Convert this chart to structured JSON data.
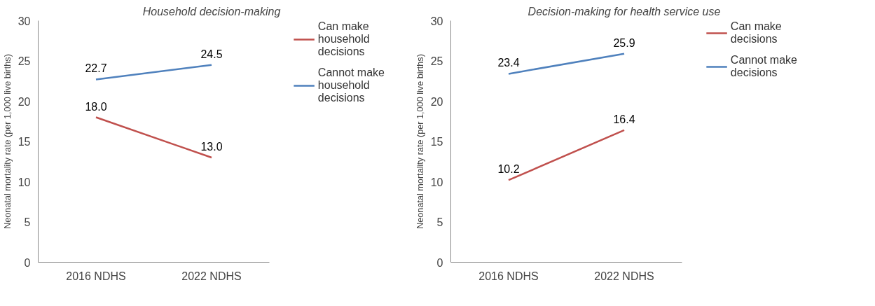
{
  "chart_data": [
    {
      "type": "line",
      "title": "Household decision-making",
      "ylabel": "Neonatal mortality rate (per 1,000 live births)",
      "categories": [
        "2016 NDHS",
        "2022 NDHS"
      ],
      "series": [
        {
          "name": "Can make household decisions",
          "color": "#c0504d",
          "values": [
            18.0,
            13.0
          ],
          "value_labels": [
            "18.0",
            "13.0"
          ]
        },
        {
          "name": "Cannot make household decisions",
          "color": "#4f81bd",
          "values": [
            22.7,
            24.5
          ],
          "value_labels": [
            "22.7",
            "24.5"
          ]
        }
      ],
      "ylim": [
        0,
        30
      ],
      "yticks": [
        0,
        5,
        10,
        15,
        20,
        25,
        30
      ],
      "grid": false,
      "legend": "right",
      "marker": "none"
    },
    {
      "type": "line",
      "title": "Decision-making for health service use",
      "ylabel": "Neonatal mortality rate (per 1,000 live births)",
      "categories": [
        "2016 NDHS",
        "2022 NDHS"
      ],
      "series": [
        {
          "name": "Can make decisions",
          "color": "#c0504d",
          "values": [
            10.2,
            16.4
          ],
          "value_labels": [
            "10.2",
            "16.4"
          ]
        },
        {
          "name": "Cannot make decisions",
          "color": "#4f81bd",
          "values": [
            23.4,
            25.9
          ],
          "value_labels": [
            "23.4",
            "25.9"
          ]
        }
      ],
      "ylim": [
        0,
        30
      ],
      "yticks": [
        0,
        5,
        10,
        15,
        20,
        25,
        30
      ],
      "grid": false,
      "legend": "right",
      "marker": "none"
    }
  ]
}
